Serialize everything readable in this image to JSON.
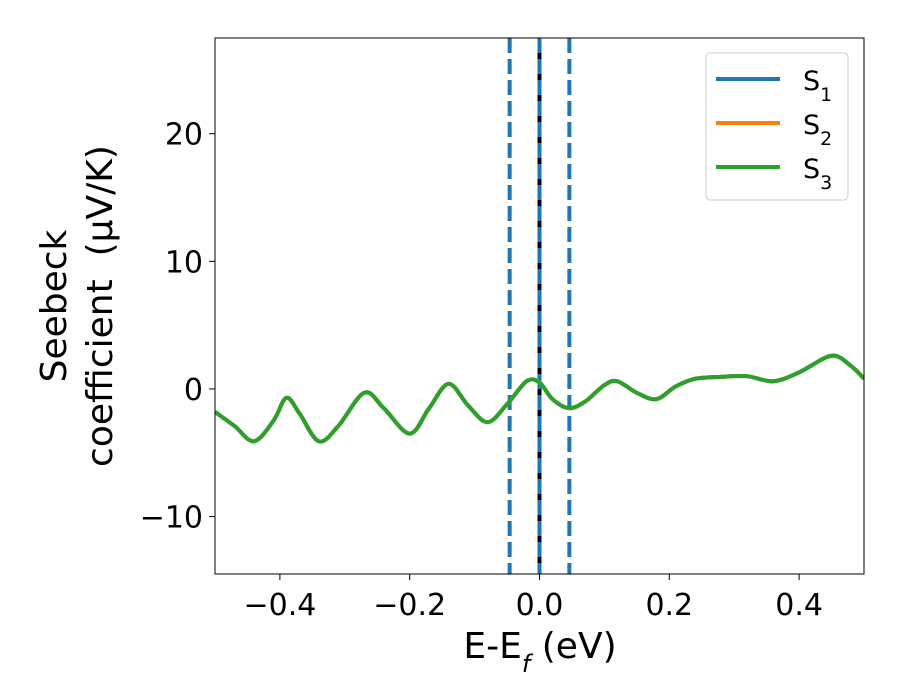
{
  "chart_data": {
    "type": "line",
    "xlabel": "E-E",
    "xlabel_sub": "f",
    "xlabel_unit": "(eV)",
    "ylabel_line1": "Seebeck",
    "ylabel_line2": "coefficient  (μV/K)",
    "xlim": [
      -0.5,
      0.5
    ],
    "ylim": [
      -14.5,
      27.5
    ],
    "x_ticks": [
      -0.4,
      -0.2,
      0.0,
      0.2,
      0.4
    ],
    "x_tick_labels": [
      "−0.4",
      "−0.2",
      "0.0",
      "0.2",
      "0.4"
    ],
    "y_ticks": [
      -10,
      0,
      10,
      20
    ],
    "y_tick_labels": [
      "−10",
      "0",
      "10",
      "20"
    ],
    "grid": false,
    "legend_position": "top-right",
    "vertical_lines": [
      {
        "x": -0.046,
        "style": "dashed",
        "color": "#1f77b4"
      },
      {
        "x": 0.0,
        "style": "solid",
        "color": "#000000"
      },
      {
        "x": 0.0,
        "style": "dashed",
        "color": "#1f77b4"
      },
      {
        "x": 0.046,
        "style": "dashed",
        "color": "#1f77b4"
      }
    ],
    "x": [
      -0.5,
      -0.47,
      -0.44,
      -0.41,
      -0.39,
      -0.37,
      -0.34,
      -0.31,
      -0.27,
      -0.24,
      -0.2,
      -0.17,
      -0.14,
      -0.11,
      -0.08,
      -0.05,
      -0.02,
      0.0,
      0.02,
      0.045,
      0.07,
      0.1,
      0.12,
      0.15,
      0.18,
      0.21,
      0.24,
      0.28,
      0.32,
      0.36,
      0.4,
      0.45,
      0.48,
      0.5
    ],
    "series": [
      {
        "name": "S",
        "sub": "1",
        "color": "#1f77b4",
        "values": [
          -1.8,
          -2.9,
          -4.1,
          -2.5,
          -0.7,
          -1.9,
          -4.1,
          -2.9,
          -0.3,
          -1.5,
          -3.5,
          -1.5,
          0.4,
          -1.3,
          -2.6,
          -1.2,
          0.6,
          0.5,
          -0.8,
          -1.5,
          -1.0,
          0.3,
          0.6,
          -0.3,
          -0.8,
          0.2,
          0.8,
          0.95,
          1.0,
          0.6,
          1.3,
          2.6,
          1.8,
          0.8
        ]
      },
      {
        "name": "S",
        "sub": "2",
        "color": "#ff7f0e",
        "values": [
          -1.8,
          -2.9,
          -4.1,
          -2.5,
          -0.7,
          -1.9,
          -4.1,
          -2.9,
          -0.3,
          -1.5,
          -3.5,
          -1.5,
          0.4,
          -1.3,
          -2.6,
          -1.2,
          0.6,
          0.5,
          -0.8,
          -1.5,
          -1.0,
          0.3,
          0.6,
          -0.3,
          -0.8,
          0.2,
          0.8,
          0.95,
          1.0,
          0.6,
          1.3,
          2.6,
          1.8,
          0.8
        ]
      },
      {
        "name": "S",
        "sub": "3",
        "color": "#2ca02c",
        "values": [
          -1.8,
          -2.9,
          -4.1,
          -2.5,
          -0.7,
          -1.9,
          -4.1,
          -2.9,
          -0.3,
          -1.5,
          -3.5,
          -1.5,
          0.4,
          -1.3,
          -2.6,
          -1.2,
          0.6,
          0.5,
          -0.8,
          -1.5,
          -1.0,
          0.3,
          0.6,
          -0.3,
          -0.8,
          0.2,
          0.8,
          0.95,
          1.0,
          0.6,
          1.3,
          2.6,
          1.8,
          0.8
        ]
      }
    ]
  }
}
